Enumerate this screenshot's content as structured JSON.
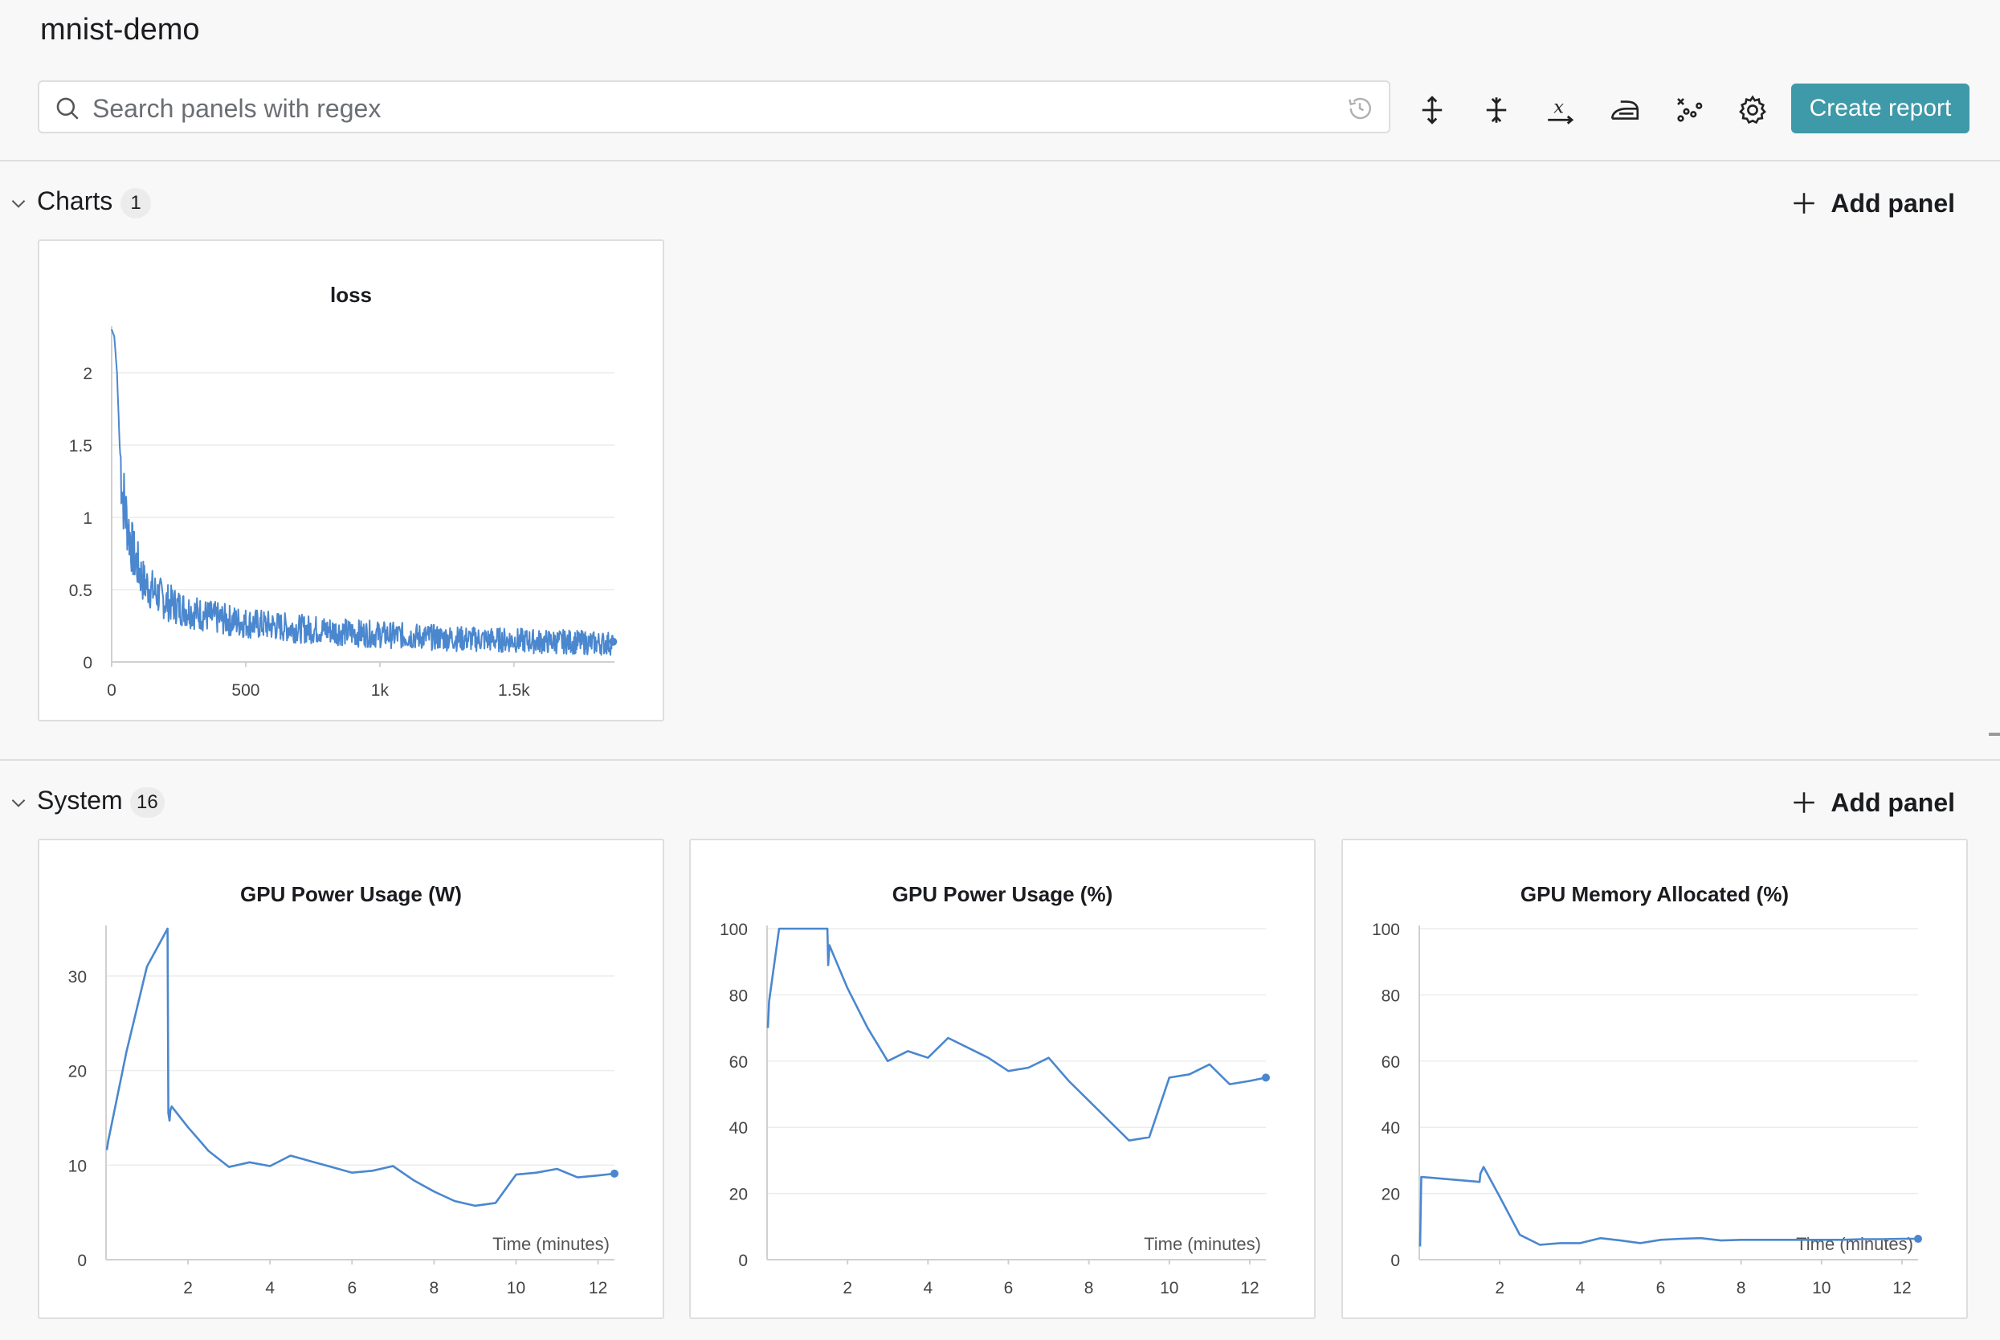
{
  "project": {
    "title": "mnist-demo"
  },
  "search": {
    "placeholder": "Search panels with regex",
    "value": ""
  },
  "toolbar": {
    "create_report_label": "Create report"
  },
  "sections": [
    {
      "title": "Charts",
      "count": "1",
      "add_panel_label": "Add panel"
    },
    {
      "title": "System",
      "count": "16",
      "add_panel_label": "Add panel"
    }
  ],
  "colors": {
    "accent": "#3e99a8",
    "series": "#4a87cf",
    "grid": "#ececec",
    "axis": "#d0d0d0"
  },
  "chart_data": [
    {
      "type": "line",
      "title": "loss",
      "xlabel": "",
      "ylabel": "",
      "xlim": [
        0,
        1875
      ],
      "ylim": [
        0,
        2.3
      ],
      "xticks": [
        0,
        500,
        1000,
        1500
      ],
      "xtick_labels": [
        "0",
        "500",
        "1k",
        "1.5k"
      ],
      "yticks": [
        0,
        0.5,
        1,
        1.5,
        2
      ],
      "ytick_labels": [
        "0",
        "0.5",
        "1",
        "1.5",
        "2"
      ],
      "grid": true,
      "series": [
        {
          "x": [
            0,
            10,
            20,
            30,
            40,
            50,
            60,
            70,
            80,
            100,
            120,
            150,
            200,
            250,
            300,
            350,
            400,
            500,
            600,
            700,
            800,
            900,
            1000,
            1100,
            1200,
            1300,
            1400,
            1500,
            1600,
            1700,
            1800,
            1870
          ],
          "y": [
            2.3,
            2.25,
            2.0,
            1.5,
            1.2,
            1.05,
            0.95,
            0.85,
            0.75,
            0.65,
            0.55,
            0.5,
            0.42,
            0.38,
            0.35,
            0.32,
            0.3,
            0.27,
            0.25,
            0.23,
            0.22,
            0.2,
            0.19,
            0.18,
            0.17,
            0.16,
            0.155,
            0.15,
            0.14,
            0.14,
            0.13,
            0.13
          ]
        }
      ]
    },
    {
      "type": "line",
      "title": "GPU Power Usage (W)",
      "xlabel": "Time (minutes)",
      "xlim": [
        0,
        12.4
      ],
      "ylim": [
        0,
        35
      ],
      "xticks": [
        2,
        4,
        6,
        8,
        10,
        12
      ],
      "xtick_labels": [
        "2",
        "4",
        "6",
        "8",
        "10",
        "12"
      ],
      "yticks": [
        0,
        10,
        20,
        30
      ],
      "ytick_labels": [
        "0",
        "10",
        "20",
        "30"
      ],
      "grid": true,
      "series": [
        {
          "x": [
            0.02,
            0.05,
            0.5,
            1.0,
            1.5,
            1.52,
            1.55,
            1.57,
            1.6,
            2.0,
            2.5,
            3.0,
            3.5,
            4.0,
            4.5,
            5.0,
            5.5,
            6.0,
            6.5,
            7.0,
            7.5,
            8.0,
            8.5,
            9.0,
            9.5,
            10.0,
            10.5,
            11.0,
            11.5,
            12.0,
            12.4
          ],
          "y": [
            11.6,
            12.5,
            22,
            31,
            35,
            15.5,
            14.7,
            15.8,
            16.2,
            14,
            11.5,
            9.8,
            10.3,
            9.9,
            11,
            10.4,
            9.8,
            9.2,
            9.4,
            9.9,
            8.4,
            7.2,
            6.2,
            5.7,
            6,
            9,
            9.2,
            9.6,
            8.7,
            8.9,
            9.1
          ]
        }
      ]
    },
    {
      "type": "line",
      "title": "GPU Power Usage (%)",
      "xlabel": "Time (minutes)",
      "xlim": [
        0,
        12.4
      ],
      "ylim": [
        0,
        100
      ],
      "xticks": [
        2,
        4,
        6,
        8,
        10,
        12
      ],
      "xtick_labels": [
        "2",
        "4",
        "6",
        "8",
        "10",
        "12"
      ],
      "yticks": [
        0,
        20,
        40,
        60,
        80,
        100
      ],
      "ytick_labels": [
        "0",
        "20",
        "40",
        "60",
        "80",
        "100"
      ],
      "grid": true,
      "series": [
        {
          "x": [
            0.02,
            0.05,
            0.3,
            1.5,
            1.52,
            1.55,
            2.0,
            2.5,
            3.0,
            3.5,
            4.0,
            4.5,
            5.0,
            5.5,
            6.0,
            6.5,
            7.0,
            7.5,
            8.0,
            8.5,
            9.0,
            9.5,
            10.0,
            10.5,
            11.0,
            11.5,
            12.0,
            12.4
          ],
          "y": [
            70,
            78,
            100,
            100,
            89,
            95,
            82,
            70,
            60,
            63,
            61,
            67,
            64,
            61,
            57,
            58,
            61,
            54,
            48,
            42,
            36,
            37,
            55,
            56,
            59,
            53,
            54,
            55
          ]
        }
      ]
    },
    {
      "type": "line",
      "title": "GPU Memory Allocated (%)",
      "xlabel": "Time (minutes)",
      "xlim": [
        0,
        12.4
      ],
      "ylim": [
        0,
        100
      ],
      "xticks": [
        2,
        4,
        6,
        8,
        10,
        12
      ],
      "xtick_labels": [
        "2",
        "4",
        "6",
        "8",
        "10",
        "12"
      ],
      "yticks": [
        0,
        20,
        40,
        60,
        80,
        100
      ],
      "ytick_labels": [
        "0",
        "20",
        "40",
        "60",
        "80",
        "100"
      ],
      "grid": true,
      "series": [
        {
          "x": [
            0.02,
            0.05,
            1.5,
            1.52,
            1.6,
            2.0,
            2.5,
            3.0,
            3.5,
            4.0,
            4.5,
            5.0,
            5.5,
            6.0,
            6.5,
            7.0,
            7.5,
            8.0,
            8.5,
            9.0,
            9.5,
            10.0,
            10.5,
            11.0,
            11.5,
            12.0,
            12.4
          ],
          "y": [
            4,
            25,
            23.5,
            26,
            28,
            19,
            7.5,
            4.5,
            5,
            5,
            6.5,
            5.8,
            5,
            6,
            6.3,
            6.5,
            5.8,
            6,
            6,
            6,
            6,
            6,
            6,
            6.2,
            6.2,
            6.3,
            6.3
          ]
        }
      ]
    }
  ]
}
